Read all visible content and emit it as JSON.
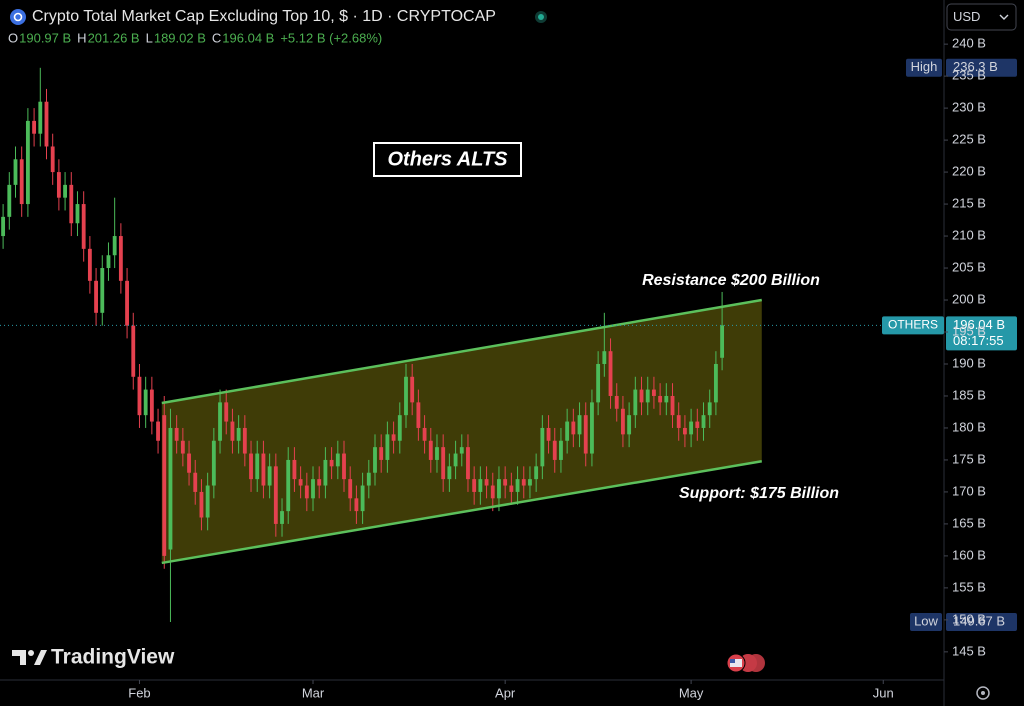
{
  "chart_data": {
    "type": "candlestick",
    "title": "Crypto Total Market Cap Excluding Top 10, $ · 1D · CRYPTOCAP",
    "ohlc_readout": [
      {
        "key": "O",
        "value": "190.97 B"
      },
      {
        "key": "H",
        "value": "201.26 B"
      },
      {
        "key": "L",
        "value": "189.02 B"
      },
      {
        "key": "C",
        "value": "196.04 B"
      }
    ],
    "change_readout": "+5.12 B (+2.68%)",
    "currency": "USD",
    "watermark": "TradingView",
    "up_color": "#4cbb5a",
    "down_color": "#e5414f",
    "open": [
      210,
      213,
      218,
      222,
      215,
      228,
      226,
      231,
      224,
      220,
      216,
      218,
      212,
      215,
      208,
      203,
      198,
      205,
      207,
      210,
      203,
      196,
      188,
      182,
      186,
      181,
      182,
      161,
      180,
      178,
      176,
      173,
      170,
      166,
      171,
      178,
      184,
      181,
      178,
      180,
      176,
      172,
      176,
      171,
      174,
      165,
      167,
      175,
      172,
      171,
      169,
      172,
      171,
      175,
      174,
      176,
      172,
      169,
      167,
      171,
      173,
      177,
      175,
      179,
      178,
      182,
      188,
      184,
      180,
      178,
      175,
      177,
      172,
      174,
      176,
      177,
      172,
      170,
      172,
      171,
      169,
      172,
      171,
      170,
      172,
      171,
      172,
      174,
      180,
      178,
      175,
      178,
      181,
      179,
      182,
      176,
      184,
      190,
      192,
      185,
      183,
      179,
      182,
      186,
      184,
      186,
      185,
      184,
      185,
      182,
      180,
      179,
      181,
      180,
      182,
      184,
      190.97
    ],
    "high": [
      215,
      220,
      224,
      224,
      230,
      230,
      236.3,
      233,
      226,
      222,
      220,
      220,
      217,
      217,
      210,
      205,
      207,
      209,
      216,
      212,
      205,
      198,
      190,
      188,
      188,
      183,
      185,
      183,
      182,
      180,
      178,
      175,
      172,
      173,
      180,
      186,
      186,
      183,
      182,
      182,
      178,
      178,
      178,
      176,
      176,
      169,
      177,
      177,
      174,
      173,
      174,
      174,
      177,
      177,
      178,
      178,
      174,
      171,
      173,
      175,
      179,
      179,
      181,
      181,
      184,
      190,
      190,
      186,
      182,
      180,
      179,
      179,
      176,
      178,
      179,
      179,
      174,
      174,
      174,
      173,
      174,
      174,
      173,
      174,
      174,
      174,
      176,
      182,
      182,
      180,
      180,
      183,
      183,
      184,
      184,
      186,
      192,
      198,
      194,
      187,
      185,
      184,
      188,
      188,
      188,
      188,
      187,
      187,
      187,
      184,
      182,
      183,
      183,
      184,
      186,
      192,
      201.26
    ],
    "low": [
      208,
      211,
      216,
      213,
      213,
      224,
      224,
      222,
      218,
      214,
      214,
      210,
      210,
      206,
      201,
      196,
      196,
      203,
      205,
      201,
      194,
      186,
      180,
      180,
      179,
      176,
      158,
      149.67,
      176,
      174,
      171,
      168,
      164,
      164,
      169,
      176,
      179,
      176,
      176,
      174,
      170,
      170,
      169,
      169,
      163,
      163,
      165,
      170,
      169,
      167,
      167,
      169,
      169,
      172,
      172,
      170,
      167,
      165,
      165,
      169,
      171,
      173,
      173,
      176,
      176,
      180,
      182,
      178,
      176,
      173,
      173,
      170,
      170,
      172,
      174,
      170,
      168,
      168,
      169,
      167,
      167,
      169,
      168,
      168,
      169,
      169,
      170,
      172,
      176,
      173,
      173,
      176,
      177,
      177,
      174,
      174,
      182,
      188,
      183,
      181,
      177,
      177,
      180,
      182,
      182,
      183,
      182,
      182,
      180,
      178,
      177,
      177,
      178,
      178,
      180,
      182,
      189.02
    ],
    "close": [
      213,
      218,
      222,
      215,
      228,
      226,
      231,
      224,
      220,
      216,
      218,
      212,
      215,
      208,
      203,
      198,
      205,
      207,
      210,
      203,
      196,
      188,
      182,
      186,
      181,
      178,
      160,
      180,
      178,
      176,
      173,
      170,
      166,
      171,
      178,
      184,
      181,
      178,
      180,
      176,
      172,
      176,
      171,
      174,
      165,
      167,
      175,
      172,
      171,
      169,
      172,
      171,
      175,
      174,
      176,
      172,
      169,
      167,
      171,
      173,
      177,
      175,
      179,
      178,
      182,
      188,
      184,
      180,
      178,
      175,
      177,
      172,
      174,
      176,
      177,
      172,
      170,
      172,
      171,
      169,
      172,
      171,
      170,
      172,
      171,
      172,
      174,
      180,
      178,
      175,
      178,
      181,
      179,
      182,
      176,
      184,
      190,
      192,
      185,
      183,
      179,
      182,
      186,
      184,
      186,
      185,
      184,
      185,
      182,
      180,
      179,
      181,
      180,
      182,
      184,
      190,
      196.04
    ],
    "xlim": [
      -0.5,
      151.8
    ],
    "xticks": [
      {
        "value": 22,
        "label": "Feb"
      },
      {
        "value": 50,
        "label": "Mar"
      },
      {
        "value": 81,
        "label": "Apr"
      },
      {
        "value": 111,
        "label": "May"
      },
      {
        "value": 142,
        "label": "Jun"
      }
    ],
    "ylim": [
      140.6,
      246.9
    ],
    "yticks": [
      {
        "value": 145,
        "label": "145 B"
      },
      {
        "value": 150,
        "label": "150 B"
      },
      {
        "value": 155,
        "label": "155 B"
      },
      {
        "value": 160,
        "label": "160 B"
      },
      {
        "value": 165,
        "label": "165 B"
      },
      {
        "value": 170,
        "label": "170 B"
      },
      {
        "value": 175,
        "label": "175 B"
      },
      {
        "value": 180,
        "label": "180 B"
      },
      {
        "value": 185,
        "label": "185 B"
      },
      {
        "value": 190,
        "label": "190 B"
      },
      {
        "value": 195,
        "label": "195 B"
      },
      {
        "value": 200,
        "label": "200 B"
      },
      {
        "value": 205,
        "label": "205 B"
      },
      {
        "value": 210,
        "label": "210 B"
      },
      {
        "value": 215,
        "label": "215 B"
      },
      {
        "value": 220,
        "label": "220 B"
      },
      {
        "value": 225,
        "label": "225 B"
      },
      {
        "value": 230,
        "label": "230 B"
      },
      {
        "value": 235,
        "label": "235 B"
      },
      {
        "value": 240,
        "label": "240 B"
      }
    ],
    "channel": {
      "color": "#5cc05c",
      "fill": "#4a4708",
      "upper": [
        {
          "x": 25.6,
          "y": 183.9
        },
        {
          "x": 122.4,
          "y": 200
        }
      ],
      "lower": [
        {
          "x": 25.6,
          "y": 158.9
        },
        {
          "x": 122.4,
          "y": 174.8
        }
      ]
    },
    "annotations": {
      "title": "Others ALTS",
      "resistance": "Resistance $200 Billion",
      "support": "Support: $175 Billion"
    },
    "price_labels": {
      "high": {
        "name": "High",
        "value": 236.3,
        "label": "236.3 B"
      },
      "low": {
        "name": "Low",
        "value": 149.67,
        "label": "149.67 B"
      },
      "last": {
        "name": "OTHERS",
        "value": 196.04,
        "label": "196.04 B",
        "countdown": "08:17:55"
      }
    }
  }
}
